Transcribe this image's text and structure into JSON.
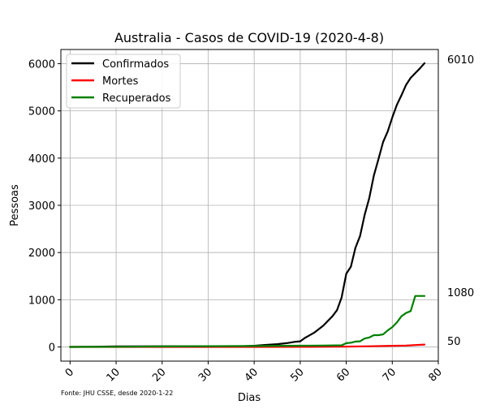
{
  "chart_data": {
    "type": "line",
    "title": "Australia - Casos de COVID-19 (2020-4-8)",
    "xlabel": "Dias",
    "ylabel": "Pessoas",
    "source_note": "Fonte: JHU CSSE, desde 2020-1-22",
    "xlim": [
      -2,
      80
    ],
    "ylim": [
      -300,
      6300
    ],
    "x_ticks": [
      0,
      10,
      20,
      30,
      40,
      50,
      60,
      70,
      80
    ],
    "y_ticks": [
      0,
      1000,
      2000,
      3000,
      4000,
      5000,
      6000
    ],
    "grid": true,
    "legend_position": "upper left",
    "end_labels": [
      "6010",
      "1080",
      "50"
    ],
    "colors": {
      "confirmados": "#000000",
      "mortes": "#ff0000",
      "recuperados": "#008000",
      "grid": "#b0b0b0"
    },
    "series": [
      {
        "name": "Confirmados",
        "points": [
          [
            0,
            0
          ],
          [
            5,
            5
          ],
          [
            10,
            12
          ],
          [
            20,
            15
          ],
          [
            30,
            15
          ],
          [
            37,
            15
          ],
          [
            40,
            25
          ],
          [
            42,
            40
          ],
          [
            45,
            60
          ],
          [
            47,
            80
          ],
          [
            49,
            110
          ],
          [
            50,
            120
          ],
          [
            51,
            190
          ],
          [
            53,
            300
          ],
          [
            55,
            450
          ],
          [
            57,
            650
          ],
          [
            58,
            780
          ],
          [
            59,
            1050
          ],
          [
            60,
            1550
          ],
          [
            61,
            1700
          ],
          [
            62,
            2100
          ],
          [
            63,
            2350
          ],
          [
            64,
            2800
          ],
          [
            65,
            3150
          ],
          [
            66,
            3630
          ],
          [
            67,
            3980
          ],
          [
            68,
            4340
          ],
          [
            69,
            4560
          ],
          [
            70,
            4860
          ],
          [
            71,
            5130
          ],
          [
            72,
            5330
          ],
          [
            73,
            5550
          ],
          [
            74,
            5700
          ],
          [
            75,
            5800
          ],
          [
            76,
            5900
          ],
          [
            77,
            6010
          ]
        ]
      },
      {
        "name": "Mortes",
        "points": [
          [
            0,
            0
          ],
          [
            40,
            1
          ],
          [
            50,
            3
          ],
          [
            55,
            5
          ],
          [
            60,
            8
          ],
          [
            65,
            15
          ],
          [
            70,
            25
          ],
          [
            73,
            30
          ],
          [
            75,
            40
          ],
          [
            77,
            50
          ]
        ]
      },
      {
        "name": "Recuperados",
        "points": [
          [
            0,
            0
          ],
          [
            10,
            5
          ],
          [
            20,
            11
          ],
          [
            40,
            20
          ],
          [
            50,
            26
          ],
          [
            55,
            30
          ],
          [
            59,
            35
          ],
          [
            60,
            80
          ],
          [
            61,
            90
          ],
          [
            62,
            115
          ],
          [
            63,
            120
          ],
          [
            64,
            180
          ],
          [
            65,
            200
          ],
          [
            66,
            250
          ],
          [
            67,
            250
          ],
          [
            68,
            265
          ],
          [
            69,
            350
          ],
          [
            70,
            420
          ],
          [
            71,
            520
          ],
          [
            72,
            650
          ],
          [
            73,
            720
          ],
          [
            74,
            760
          ],
          [
            75,
            1080
          ],
          [
            76,
            1080
          ],
          [
            77,
            1080
          ]
        ]
      }
    ]
  }
}
